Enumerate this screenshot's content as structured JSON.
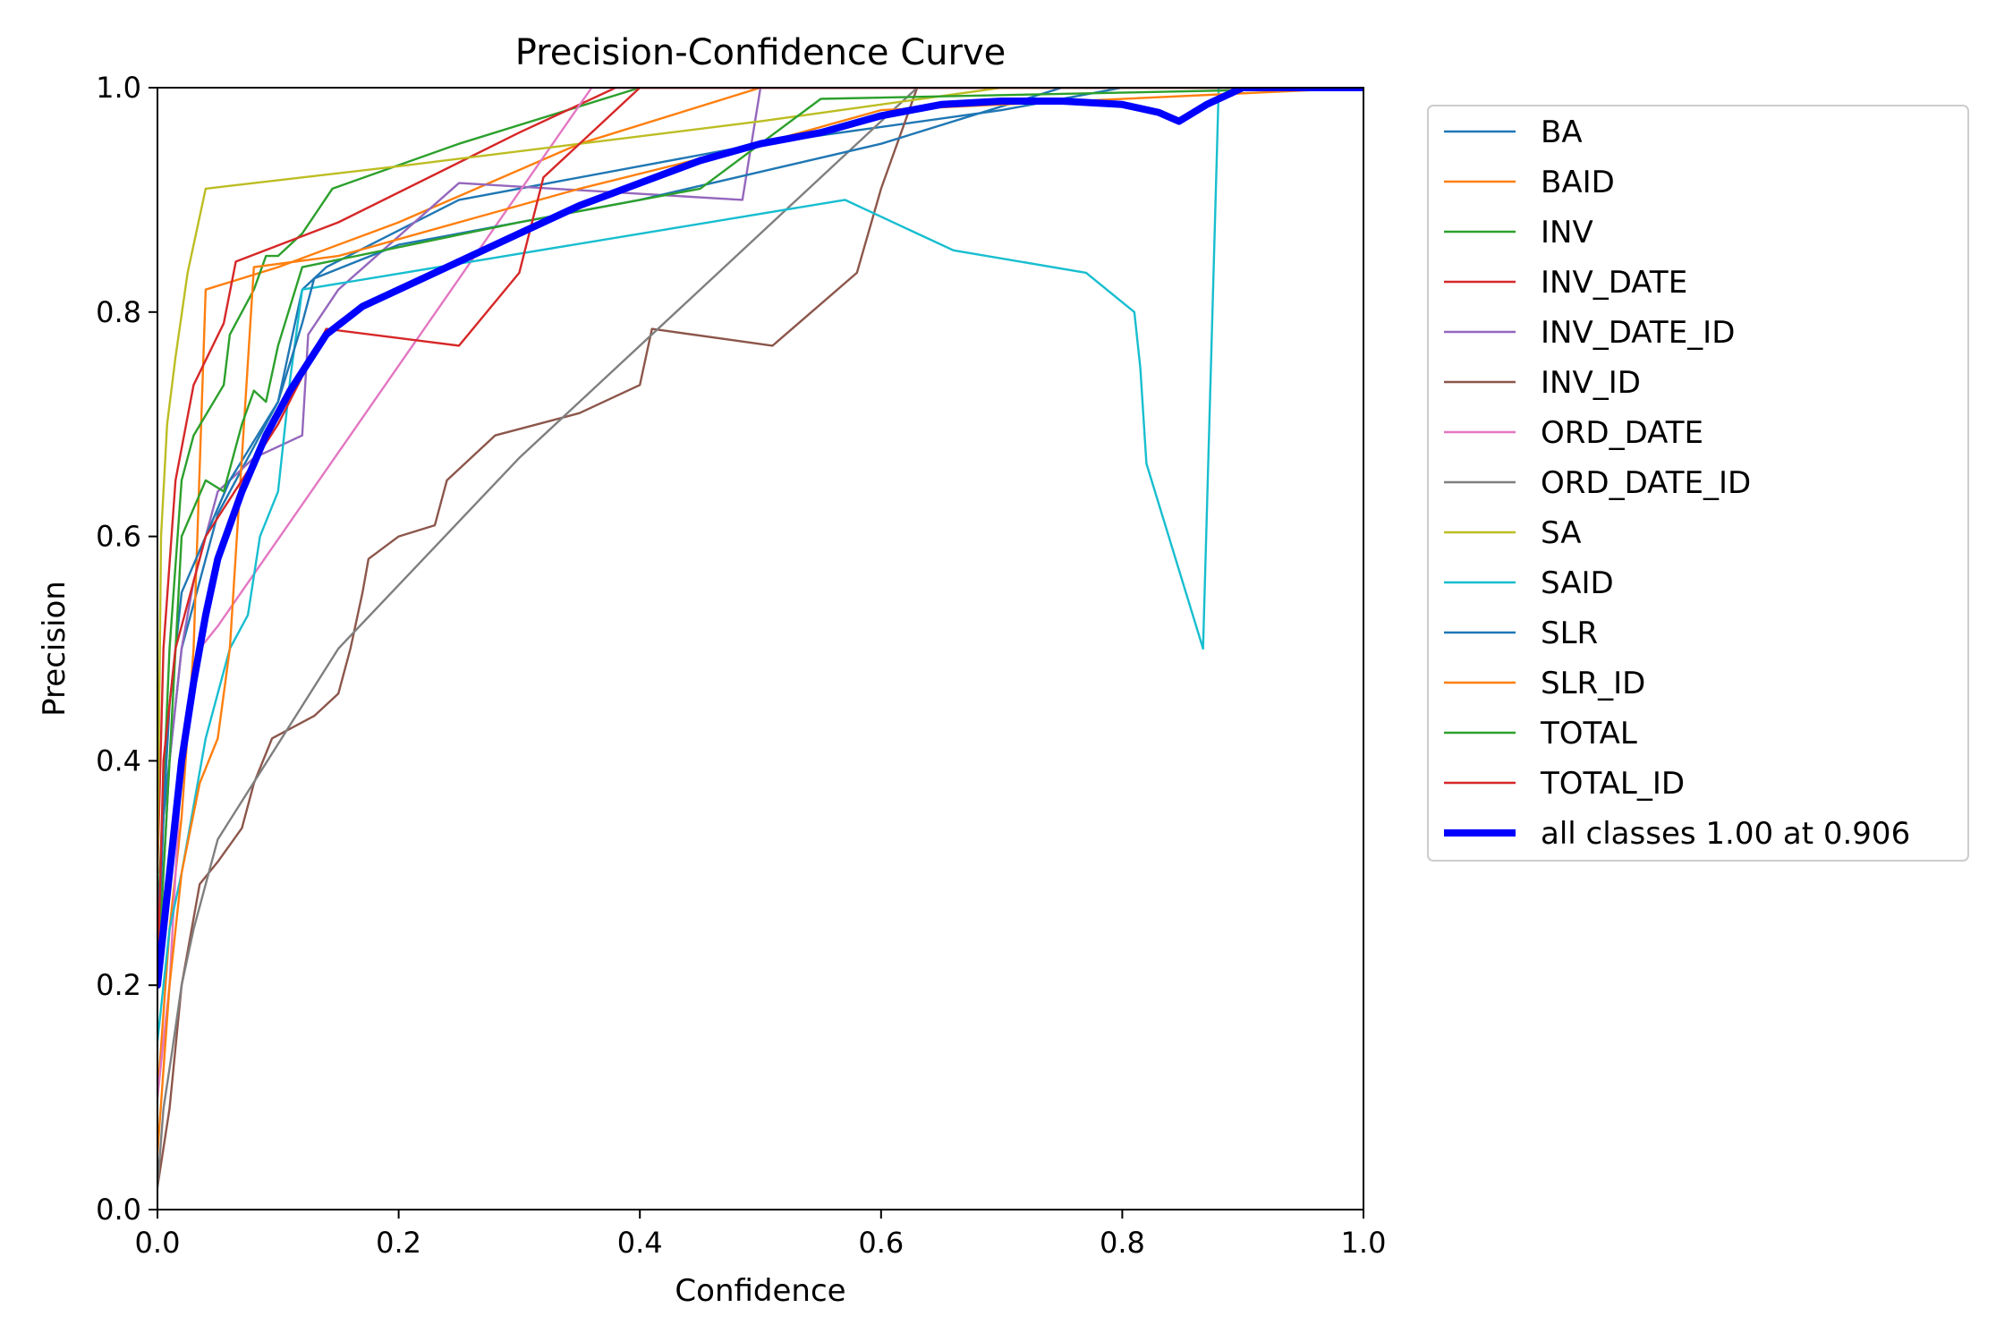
{
  "chart_data": {
    "type": "line",
    "title": "Precision-Confidence Curve",
    "xlabel": "Confidence",
    "ylabel": "Precision",
    "xlim": [
      0,
      1
    ],
    "ylim": [
      0,
      1
    ],
    "xticks": [
      "0.0",
      "0.2",
      "0.4",
      "0.6",
      "0.8",
      "1.0"
    ],
    "yticks": [
      "0.0",
      "0.2",
      "0.4",
      "0.6",
      "0.8",
      "1.0"
    ],
    "grid": false,
    "legend_position": "outside-upper-right",
    "series": [
      {
        "name": "BA",
        "color": "#1f77b4",
        "x": [
          0,
          0.005,
          0.02,
          0.05,
          0.1,
          0.12,
          0.14,
          0.25,
          0.5,
          0.7,
          0.8,
          1.0
        ],
        "y": [
          0.2,
          0.35,
          0.5,
          0.62,
          0.72,
          0.82,
          0.84,
          0.9,
          0.95,
          0.98,
          1.0,
          1.0
        ]
      },
      {
        "name": "BAID",
        "color": "#ff7f0e",
        "x": [
          0,
          0.01,
          0.02,
          0.03,
          0.04,
          0.1,
          0.2,
          0.35,
          0.5,
          0.6,
          1.0
        ],
        "y": [
          0.1,
          0.25,
          0.35,
          0.5,
          0.82,
          0.84,
          0.88,
          0.95,
          1.0,
          1.0,
          1.0
        ]
      },
      {
        "name": "INV",
        "color": "#2ca02c",
        "x": [
          0,
          0.01,
          0.02,
          0.03,
          0.055,
          0.06,
          0.08,
          0.09,
          0.1,
          0.12,
          0.145,
          0.25,
          0.4,
          1.0
        ],
        "y": [
          0.25,
          0.5,
          0.65,
          0.69,
          0.735,
          0.78,
          0.82,
          0.85,
          0.85,
          0.87,
          0.91,
          0.95,
          1.0,
          1.0
        ]
      },
      {
        "name": "INV_DATE",
        "color": "#d62728",
        "x": [
          0,
          0.005,
          0.015,
          0.03,
          0.055,
          0.065,
          0.15,
          0.3,
          0.38,
          1.0
        ],
        "y": [
          0.3,
          0.5,
          0.65,
          0.735,
          0.79,
          0.845,
          0.88,
          0.96,
          1.0,
          1.0
        ]
      },
      {
        "name": "INV_DATE_ID",
        "color": "#9467bd",
        "x": [
          0,
          0.01,
          0.02,
          0.03,
          0.05,
          0.08,
          0.12,
          0.125,
          0.15,
          0.25,
          0.485,
          0.5,
          1.0
        ],
        "y": [
          0.2,
          0.4,
          0.5,
          0.56,
          0.64,
          0.67,
          0.69,
          0.78,
          0.82,
          0.915,
          0.9,
          1.0,
          1.0
        ]
      },
      {
        "name": "INV_ID",
        "color": "#8c564b",
        "x": [
          0,
          0.01,
          0.02,
          0.035,
          0.05,
          0.07,
          0.08,
          0.095,
          0.13,
          0.15,
          0.16,
          0.17,
          0.175,
          0.2,
          0.23,
          0.24,
          0.28,
          0.35,
          0.4,
          0.41,
          0.51,
          0.58,
          0.6,
          0.63,
          1.0
        ],
        "y": [
          0.02,
          0.09,
          0.2,
          0.29,
          0.31,
          0.34,
          0.38,
          0.42,
          0.44,
          0.46,
          0.5,
          0.55,
          0.58,
          0.6,
          0.61,
          0.65,
          0.69,
          0.71,
          0.735,
          0.785,
          0.77,
          0.835,
          0.91,
          1.0,
          1.0
        ]
      },
      {
        "name": "ORD_DATE",
        "color": "#e377c2",
        "x": [
          0,
          0.01,
          0.02,
          0.035,
          0.05,
          0.36,
          1.0
        ],
        "y": [
          0.1,
          0.2,
          0.4,
          0.5,
          0.52,
          1.0,
          1.0
        ]
      },
      {
        "name": "ORD_DATE_ID",
        "color": "#7f7f7f",
        "x": [
          0,
          0.005,
          0.012,
          0.02,
          0.03,
          0.05,
          0.15,
          0.3,
          0.63,
          1.0
        ],
        "y": [
          0.02,
          0.09,
          0.14,
          0.2,
          0.25,
          0.33,
          0.5,
          0.67,
          1.0,
          1.0
        ]
      },
      {
        "name": "SA",
        "color": "#bcbd22",
        "x": [
          0,
          0.003,
          0.008,
          0.015,
          0.025,
          0.04,
          0.2,
          0.5,
          0.7,
          1.0
        ],
        "y": [
          0.3,
          0.6,
          0.7,
          0.76,
          0.835,
          0.91,
          0.93,
          0.97,
          1.0,
          1.0
        ]
      },
      {
        "name": "SAID",
        "color": "#17becf",
        "x": [
          0,
          0.01,
          0.02,
          0.04,
          0.06,
          0.075,
          0.085,
          0.1,
          0.11,
          0.12,
          0.57,
          0.6,
          0.62,
          0.66,
          0.77,
          0.81,
          0.815,
          0.82,
          0.867,
          0.88,
          0.9,
          1.0
        ],
        "y": [
          0.15,
          0.25,
          0.3,
          0.42,
          0.5,
          0.53,
          0.6,
          0.64,
          0.74,
          0.82,
          0.9,
          0.885,
          0.875,
          0.855,
          0.835,
          0.8,
          0.75,
          0.665,
          0.5,
          1.0,
          1.0,
          1.0
        ]
      },
      {
        "name": "SLR",
        "color": "#1f77b4",
        "x": [
          0,
          0.01,
          0.02,
          0.04,
          0.06,
          0.1,
          0.12,
          0.13,
          0.2,
          0.4,
          0.6,
          0.75,
          1.0
        ],
        "y": [
          0.25,
          0.45,
          0.55,
          0.6,
          0.65,
          0.72,
          0.79,
          0.83,
          0.86,
          0.9,
          0.95,
          1.0,
          1.0
        ]
      },
      {
        "name": "SLR_ID",
        "color": "#ff7f0e",
        "x": [
          0,
          0.01,
          0.02,
          0.035,
          0.05,
          0.06,
          0.08,
          0.15,
          0.25,
          0.35,
          0.5,
          0.6,
          1.0
        ],
        "y": [
          0.05,
          0.2,
          0.3,
          0.38,
          0.42,
          0.5,
          0.84,
          0.85,
          0.88,
          0.91,
          0.95,
          0.98,
          1.0
        ]
      },
      {
        "name": "TOTAL",
        "color": "#2ca02c",
        "x": [
          0,
          0.01,
          0.02,
          0.04,
          0.055,
          0.07,
          0.08,
          0.09,
          0.1,
          0.12,
          0.3,
          0.45,
          0.55,
          1.0
        ],
        "y": [
          0.2,
          0.4,
          0.6,
          0.65,
          0.64,
          0.7,
          0.73,
          0.72,
          0.77,
          0.84,
          0.88,
          0.91,
          0.99,
          1.0
        ]
      },
      {
        "name": "TOTAL_ID",
        "color": "#d62728",
        "x": [
          0,
          0.005,
          0.015,
          0.04,
          0.1,
          0.14,
          0.25,
          0.3,
          0.32,
          0.4,
          1.0
        ],
        "y": [
          0.2,
          0.4,
          0.5,
          0.6,
          0.7,
          0.785,
          0.77,
          0.835,
          0.92,
          1.0,
          1.0
        ]
      },
      {
        "name": "all classes 1.00 at 0.906",
        "color": "#0000ff",
        "width": 8,
        "x": [
          0,
          0.01,
          0.02,
          0.03,
          0.04,
          0.05,
          0.07,
          0.09,
          0.11,
          0.14,
          0.17,
          0.2,
          0.25,
          0.3,
          0.35,
          0.4,
          0.45,
          0.5,
          0.55,
          0.6,
          0.65,
          0.7,
          0.75,
          0.8,
          0.83,
          0.847,
          0.87,
          0.9,
          0.95,
          1.0
        ],
        "y": [
          0.2,
          0.3,
          0.4,
          0.47,
          0.53,
          0.58,
          0.64,
          0.69,
          0.73,
          0.78,
          0.805,
          0.82,
          0.845,
          0.87,
          0.895,
          0.915,
          0.935,
          0.95,
          0.96,
          0.975,
          0.985,
          0.988,
          0.988,
          0.985,
          0.978,
          0.97,
          0.985,
          1.0,
          1.0,
          1.0
        ]
      }
    ]
  }
}
